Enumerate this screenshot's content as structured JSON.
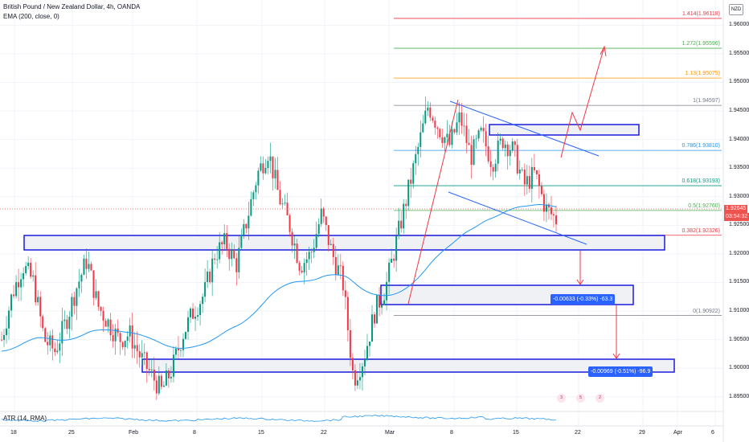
{
  "header": {
    "title": "British Pound / New Zealand Dollar, 4h, OANDA",
    "indicator": "EMA (200, close, 0)"
  },
  "currency_badge": "NZD",
  "price_axis": {
    "ticks": [
      "1.96000",
      "1.95500",
      "1.95000",
      "1.94500",
      "1.94000",
      "1.93500",
      "1.93000",
      "1.92500",
      "1.92000",
      "1.91500",
      "1.91000",
      "1.90500",
      "1.90000",
      "1.89500"
    ],
    "current_price": "1.92645",
    "countdown": "03:54:32",
    "price_color": "#ef5350"
  },
  "time_axis": {
    "ticks": [
      "18",
      "25",
      "Feb",
      "8",
      "15",
      "22",
      "Mar",
      "8",
      "15",
      "22",
      "29",
      "Apr",
      "6"
    ]
  },
  "fib_levels": [
    {
      "label": "1.414(1.96118)",
      "color": "#f23645"
    },
    {
      "label": "1.272(1.95596)",
      "color": "#4caf50"
    },
    {
      "label": "1.13(1.95075)",
      "color": "#ff9800"
    },
    {
      "label": "1(1.94597)",
      "color": "#787b86"
    },
    {
      "label": "0.786(1.93810)",
      "color": "#2196f3"
    },
    {
      "label": "0.618(1.93193)",
      "color": "#089981"
    },
    {
      "label": "0.5(1.92760)",
      "color": "#4caf50"
    },
    {
      "label": "0.382(1.92326)",
      "color": "#f23645"
    },
    {
      "label": "0(1.90922)",
      "color": "#787b86"
    }
  ],
  "measures": [
    {
      "label": "-0.00633 (-0.33%) -63.3"
    },
    {
      "label": "-0.00969 (-0.51%) -96.9"
    }
  ],
  "atr": {
    "label": "ATR (14, RMA)"
  },
  "events": [
    {
      "icon": "dividend-icon",
      "text": "3"
    },
    {
      "icon": "earnings-icon",
      "text": "5"
    },
    {
      "icon": "split-icon",
      "text": "2"
    }
  ],
  "chart_data": {
    "type": "candlestick",
    "title": "British Pound / New Zealand Dollar, 4h, OANDA",
    "x_ticks": [
      "18",
      "25",
      "Feb",
      "8",
      "15",
      "22",
      "Mar",
      "8",
      "15",
      "22",
      "29",
      "Apr",
      "6"
    ],
    "y_range": [
      1.893,
      1.963
    ],
    "current_price": 1.92645,
    "ema_period": 200,
    "fib_retracement": [
      1.96118,
      1.95596,
      1.95075,
      1.94597,
      1.9381,
      1.93193,
      1.9276,
      1.92326,
      1.90922
    ],
    "zones": [
      {
        "name": "resistance-zone",
        "range": [
          1.9397,
          1.9415
        ]
      },
      {
        "name": "support-zone-1",
        "range": [
          1.919,
          1.9215
        ]
      },
      {
        "name": "support-zone-2",
        "range": [
          1.909,
          1.9125
        ]
      },
      {
        "name": "support-zone-3",
        "range": [
          1.897,
          1.899
        ]
      }
    ],
    "price_path": [
      1.905,
      1.913,
      1.918,
      1.915,
      1.905,
      1.903,
      1.908,
      1.914,
      1.919,
      1.911,
      1.908,
      1.905,
      1.906,
      1.902,
      1.899,
      1.896,
      1.9,
      1.906,
      1.91,
      1.913,
      1.92,
      1.922,
      1.918,
      1.926,
      1.934,
      1.938,
      1.93,
      1.925,
      1.918,
      1.92,
      1.927,
      1.92,
      1.915,
      1.898,
      1.902,
      1.91,
      1.914,
      1.922,
      1.93,
      1.938,
      1.946,
      1.942,
      1.939,
      1.944,
      1.937,
      1.941,
      1.936,
      1.94,
      1.938,
      1.932,
      1.934,
      1.928,
      1.926
    ]
  }
}
